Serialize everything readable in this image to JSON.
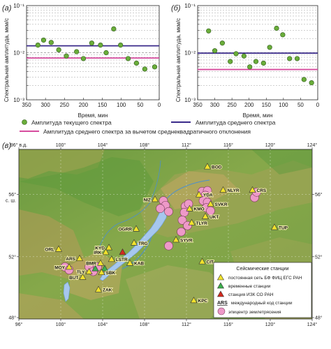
{
  "chart_data": [
    {
      "type": "scatter",
      "panel": "(а)",
      "ylabel": "Спектральная амплитуда, мкм/с",
      "xlabel": "Время, мин",
      "x_ticks": [
        "350",
        "300",
        "250",
        "200",
        "150",
        "100",
        "50",
        "0"
      ],
      "xlim": [
        350,
        0
      ],
      "ylim": [
        0.001,
        0.1
      ],
      "yscale": "log",
      "y_ticks": [
        "10⁻¹",
        "10⁻²",
        "10⁻³"
      ],
      "grid": "horizontal dashed",
      "points": [
        {
          "x": 320,
          "y": 0.0145
        },
        {
          "x": 305,
          "y": 0.0185
        },
        {
          "x": 285,
          "y": 0.0165
        },
        {
          "x": 265,
          "y": 0.0115
        },
        {
          "x": 245,
          "y": 0.0085
        },
        {
          "x": 218,
          "y": 0.0105
        },
        {
          "x": 200,
          "y": 0.0075
        },
        {
          "x": 178,
          "y": 0.016
        },
        {
          "x": 155,
          "y": 0.0145
        },
        {
          "x": 140,
          "y": 0.01
        },
        {
          "x": 120,
          "y": 0.032
        },
        {
          "x": 102,
          "y": 0.0145
        },
        {
          "x": 82,
          "y": 0.0075
        },
        {
          "x": 60,
          "y": 0.006
        },
        {
          "x": 38,
          "y": 0.0045
        },
        {
          "x": 12,
          "y": 0.005
        }
      ],
      "mean": 0.014,
      "mean_minus_std": 0.0077
    },
    {
      "type": "scatter",
      "panel": "(б)",
      "ylabel": "Спектральная амплитуда, мкм/с",
      "xlabel": "Время, мин",
      "x_ticks": [
        "350",
        "300",
        "250",
        "200",
        "150",
        "100",
        "50",
        "0"
      ],
      "xlim": [
        350,
        0
      ],
      "ylim": [
        0.001,
        0.1
      ],
      "yscale": "log",
      "y_ticks": [
        "10⁻¹",
        "10⁻²",
        "10⁻³"
      ],
      "grid": "horizontal dashed",
      "points": [
        {
          "x": 318,
          "y": 0.029
        },
        {
          "x": 300,
          "y": 0.011
        },
        {
          "x": 278,
          "y": 0.016
        },
        {
          "x": 255,
          "y": 0.0065
        },
        {
          "x": 238,
          "y": 0.0095
        },
        {
          "x": 215,
          "y": 0.0085
        },
        {
          "x": 198,
          "y": 0.005
        },
        {
          "x": 180,
          "y": 0.0065
        },
        {
          "x": 158,
          "y": 0.006
        },
        {
          "x": 140,
          "y": 0.013
        },
        {
          "x": 120,
          "y": 0.033
        },
        {
          "x": 102,
          "y": 0.024
        },
        {
          "x": 82,
          "y": 0.0075
        },
        {
          "x": 60,
          "y": 0.0075
        },
        {
          "x": 40,
          "y": 0.0027
        },
        {
          "x": 18,
          "y": 0.0023
        }
      ],
      "mean": 0.0098,
      "mean_minus_std": 0.0044
    }
  ],
  "legend": {
    "current": "Амплитуда текущего спектра",
    "mean": "Амплитуда среднего спектра",
    "mean_minus_std": "Амплитуда среднего спектра за вычетом среднеквадратичного отклонения"
  },
  "colors": {
    "points": "#6aad3a",
    "mean_line": "#3a2a8a",
    "std_line": "#d64c9e",
    "station": "#f1e22c",
    "temp_station": "#3cae4c",
    "izk_station": "#d32a1f",
    "epicenter": "#ee99c8"
  },
  "map": {
    "panel": "(в)",
    "top_ticks": [
      "96° в.д.",
      "100°",
      "104°",
      "108°",
      "112°",
      "116°",
      "120°",
      "124°"
    ],
    "bottom_ticks": [
      "96°",
      "100°",
      "104°",
      "108°",
      "112°",
      "116°",
      "120°",
      "124°"
    ],
    "left_ticks": [
      {
        "lat": 56,
        "label": "56°",
        "sub": "с. ш."
      },
      {
        "lat": 52,
        "label": "52°"
      },
      {
        "lat": 48,
        "label": "48°"
      }
    ],
    "right_ticks": [
      "56°",
      "52°",
      "48°"
    ],
    "lon_range": [
      96,
      124
    ],
    "lat_range": [
      48,
      58.9
    ],
    "stations": [
      {
        "code": "BOD",
        "lon": 114.0,
        "lat": 57.8,
        "type": "permanent"
      },
      {
        "code": "NLYR",
        "lon": 115.5,
        "lat": 56.3,
        "type": "permanent"
      },
      {
        "code": "CRS",
        "lon": 118.3,
        "lat": 56.3,
        "type": "permanent"
      },
      {
        "code": "YDA",
        "lon": 113.2,
        "lat": 56.0,
        "type": "permanent"
      },
      {
        "code": "SVKR",
        "lon": 114.3,
        "lat": 55.4,
        "type": "permanent"
      },
      {
        "code": "NIZ",
        "lon": 109.0,
        "lat": 55.7,
        "type": "permanent"
      },
      {
        "code": "KMO",
        "lon": 112.3,
        "lat": 55.1,
        "type": "permanent"
      },
      {
        "code": "UKT",
        "lon": 113.8,
        "lat": 54.6,
        "type": "permanent"
      },
      {
        "code": "TLYR",
        "lon": 112.5,
        "lat": 54.2,
        "type": "permanent"
      },
      {
        "code": "OGRR",
        "lon": 107.2,
        "lat": 53.8,
        "type": "permanent"
      },
      {
        "code": "TUP",
        "lon": 120.4,
        "lat": 53.9,
        "type": "permanent"
      },
      {
        "code": "SYVR",
        "lon": 111.0,
        "lat": 53.1,
        "type": "permanent"
      },
      {
        "code": "TRG",
        "lon": 107.0,
        "lat": 52.9,
        "type": "permanent"
      },
      {
        "code": "KYD",
        "lon": 104.6,
        "lat": 52.6,
        "type": "permanent"
      },
      {
        "code": "IRK",
        "lon": 104.3,
        "lat": 52.3,
        "type": "permanent"
      },
      {
        "code": "LSTR",
        "lon": 104.85,
        "lat": 51.85,
        "type": "permanent"
      },
      {
        "code": "ORL",
        "lon": 99.8,
        "lat": 52.5,
        "type": "permanent"
      },
      {
        "code": "ARS",
        "lon": 101.8,
        "lat": 51.9,
        "type": "permanent"
      },
      {
        "code": "BMR",
        "lon": 103.8,
        "lat": 51.6,
        "type": "permanent"
      },
      {
        "code": "KAB",
        "lon": 106.6,
        "lat": 51.6,
        "type": "permanent"
      },
      {
        "code": "MOY",
        "lon": 100.8,
        "lat": 51.35,
        "type": "permanent"
      },
      {
        "code": "TLY",
        "lon": 102.7,
        "lat": 51.05,
        "type": "permanent"
      },
      {
        "code": "SBK",
        "lon": 103.9,
        "lat": 51.0,
        "type": "permanent"
      },
      {
        "code": "BUT",
        "lon": 102.1,
        "lat": 50.7,
        "type": "permanent"
      },
      {
        "code": "CIT",
        "lon": 113.5,
        "lat": 51.7,
        "type": "permanent"
      },
      {
        "code": "ZAK",
        "lon": 103.6,
        "lat": 49.9,
        "type": "permanent"
      },
      {
        "code": "KPC",
        "lon": 112.7,
        "lat": 49.2,
        "type": "permanent"
      }
    ],
    "special_stations": [
      {
        "lon": 105.9,
        "lat": 52.3,
        "type": "izk"
      },
      {
        "lon": 103.3,
        "lat": 51.25,
        "type": "temporary"
      },
      {
        "lon": 104.2,
        "lat": 51.25,
        "type": "temporary"
      }
    ],
    "epicenters": [
      {
        "lon": 113.5,
        "lat": 56.2
      },
      {
        "lon": 114.0,
        "lat": 56.25
      },
      {
        "lon": 113.8,
        "lat": 55.95
      },
      {
        "lon": 113.6,
        "lat": 55.6
      },
      {
        "lon": 114.0,
        "lat": 55.5
      },
      {
        "lon": 113.9,
        "lat": 55.15
      },
      {
        "lon": 114.3,
        "lat": 54.95
      },
      {
        "lon": 118.5,
        "lat": 55.8
      },
      {
        "lon": 118.7,
        "lat": 56.15
      },
      {
        "lon": 109.8,
        "lat": 55.6
      },
      {
        "lon": 110.0,
        "lat": 55.3
      },
      {
        "lon": 109.5,
        "lat": 55.1
      },
      {
        "lon": 110.3,
        "lat": 54.9
      },
      {
        "lon": 111.9,
        "lat": 55.25
      },
      {
        "lon": 112.2,
        "lat": 55.4
      },
      {
        "lon": 111.8,
        "lat": 54.85
      },
      {
        "lon": 111.6,
        "lat": 54.35
      },
      {
        "lon": 112.1,
        "lat": 54.0
      },
      {
        "lon": 111.5,
        "lat": 53.6
      },
      {
        "lon": 110.3,
        "lat": 52.7
      },
      {
        "lon": 100.4,
        "lat": 51.35
      },
      {
        "lon": 100.8,
        "lat": 51.15
      },
      {
        "lon": 102.7,
        "lat": 51.35
      },
      {
        "lon": 103.1,
        "lat": 51.05
      },
      {
        "lon": 103.5,
        "lat": 51.35
      }
    ],
    "legend": {
      "title": "Сейсмические станции",
      "permanent": "постоянная сеть БФ ФИЦ ЕГС РАН",
      "temporary": "временные станции",
      "izk": "станция ИЗК СО РАН",
      "code_sample": "ARS",
      "code": "международный код станции",
      "epicenter": "эпицентр землетрясения"
    }
  }
}
